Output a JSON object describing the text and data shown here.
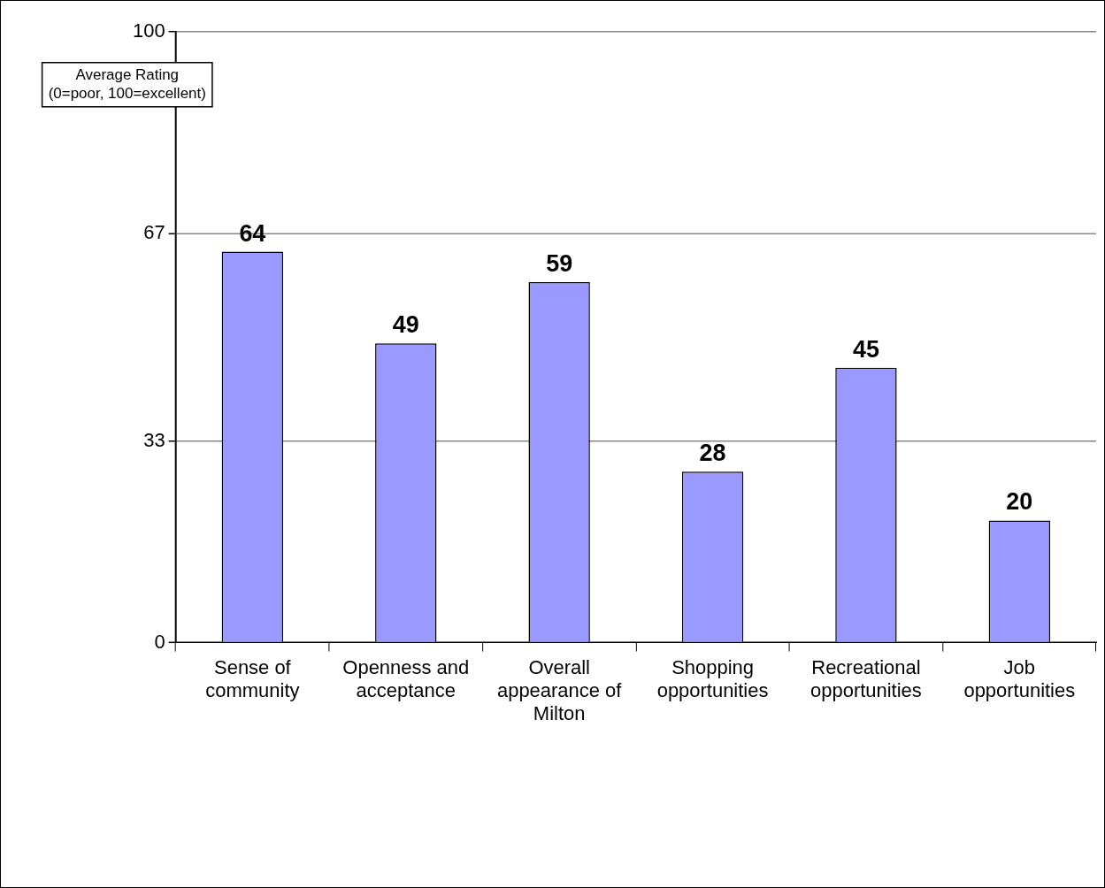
{
  "chart_data": {
    "type": "bar",
    "ylabel": "Average Rating\n(0=poor, 100=excellent)",
    "categories": [
      "Sense of community",
      "Openness and acceptance",
      "Overall appearance of Milton",
      "Shopping opportunities",
      "Recreational opportunities",
      "Job opportunities"
    ],
    "values": [
      64,
      49,
      59,
      28,
      45,
      20
    ],
    "color": "#9999ff",
    "ylim": [
      0,
      100
    ],
    "yticks": [
      0,
      33,
      67,
      100
    ],
    "grid": "y",
    "data_labels": true,
    "legend": false
  }
}
